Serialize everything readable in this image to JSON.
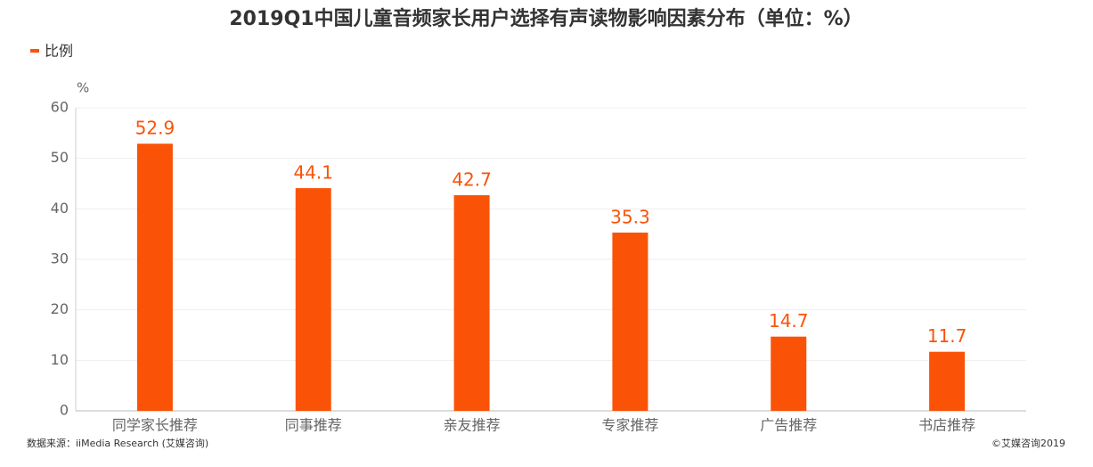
{
  "chart_data": {
    "type": "bar",
    "title": "2019Q1中国儿童音频家长用户选择有声读物影响因素分布（单位：%）",
    "y_unit": "%",
    "series": [
      {
        "name": "比例",
        "color": "#fa5308",
        "values": [
          52.9,
          44.1,
          42.7,
          35.3,
          14.7,
          11.7
        ]
      }
    ],
    "categories": [
      "同学家长推荐",
      "同事推荐",
      "亲友推荐",
      "专家推荐",
      "广告推荐",
      "书店推荐"
    ],
    "ylim": [
      0,
      60
    ],
    "yticks": [
      0,
      10,
      20,
      30,
      40,
      50,
      60
    ],
    "grid": true,
    "source": "数据来源：iiMedia Research (艾媒咨询)",
    "copyright": "©艾媒咨询2019"
  }
}
